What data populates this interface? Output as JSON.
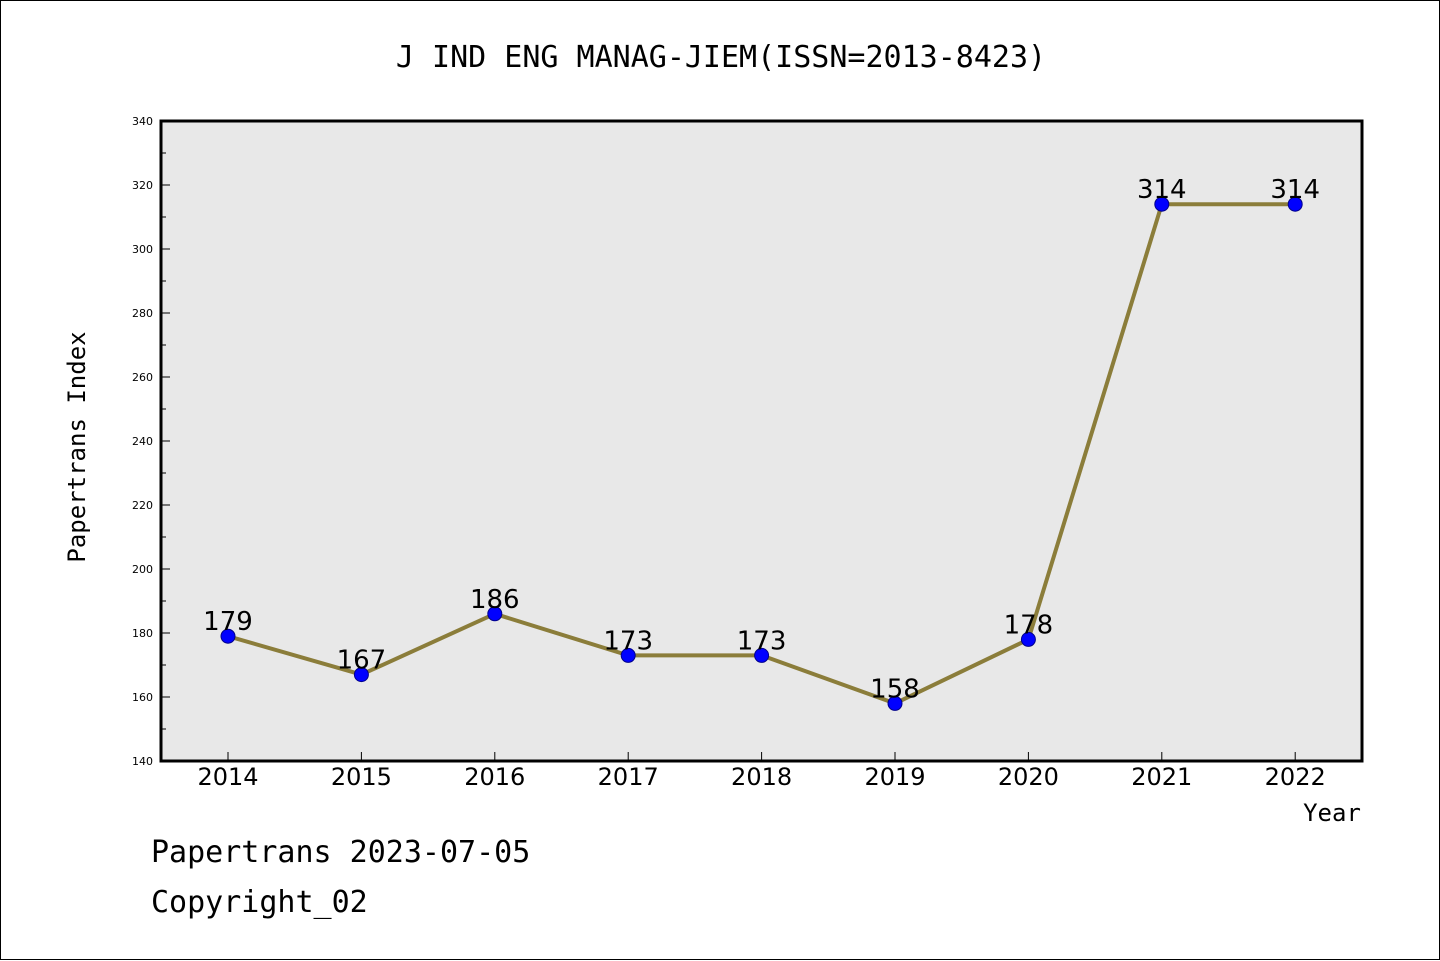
{
  "chart_data": {
    "type": "line",
    "title": "J IND ENG MANAG-JIEM(ISSN=2013-8423)",
    "xlabel": "Year",
    "ylabel": "Papertrans Index",
    "categories": [
      "2014",
      "2015",
      "2016",
      "2017",
      "2018",
      "2019",
      "2020",
      "2021",
      "2022"
    ],
    "values": [
      179,
      167,
      186,
      173,
      173,
      158,
      178,
      314,
      314
    ],
    "data_labels": [
      "179",
      "167",
      "186",
      "173",
      "173",
      "158",
      "178",
      "314",
      "314"
    ],
    "yticks": [
      "140",
      "160",
      "180",
      "200",
      "220",
      "240",
      "260",
      "280",
      "300",
      "320",
      "340"
    ],
    "ylim": [
      140,
      340
    ],
    "grid": false,
    "colors": {
      "line": "#8b7d3a",
      "marker": "#0000ff",
      "plot_bg": "#e8e8e8"
    }
  },
  "footer": {
    "line1": "Papertrans 2023-07-05",
    "line2": "Copyright_02"
  }
}
